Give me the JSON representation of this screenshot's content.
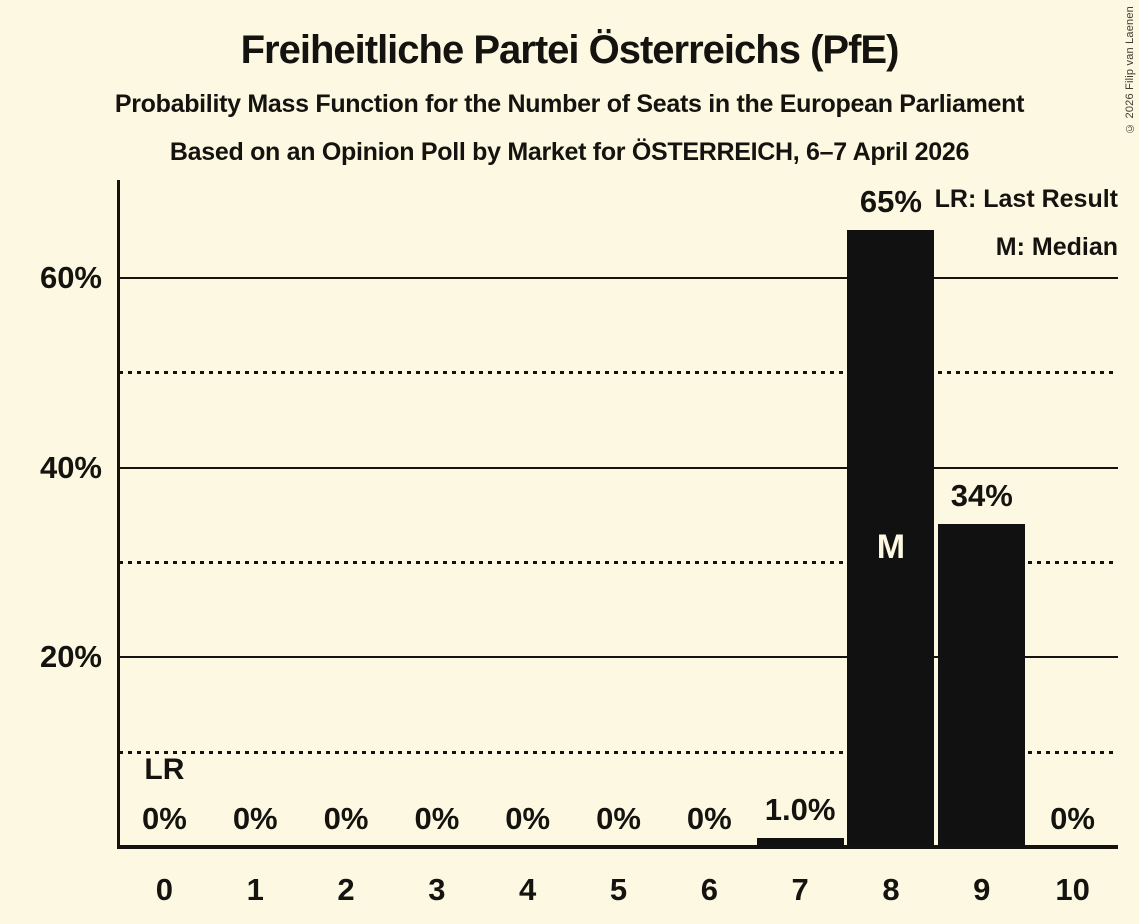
{
  "page": {
    "background": "#FDF8E1",
    "ink": "#14130F",
    "copyright_color": "#3E3B33"
  },
  "header": {
    "title": "Freiheitliche Partei Österreichs (PfE)",
    "subtitle": "Probability Mass Function for the Number of Seats in the European Parliament",
    "source_line": "Based on an Opinion Poll by Market for ÖSTERREICH, 6–7 April 2026",
    "copyright": "© 2026 Filip van Laenen"
  },
  "legend": {
    "items": [
      {
        "label": "LR: Last Result"
      },
      {
        "label": "M: Median"
      }
    ]
  },
  "chart_data": {
    "type": "bar",
    "title": "Freiheitliche Partei Österreichs (PfE)",
    "subtitle": "Probability Mass Function for the Number of Seats in the European Parliament",
    "source": "Based on an Opinion Poll by Market for ÖSTERREICH, 6–7 April 2026",
    "categories": [
      "0",
      "1",
      "2",
      "3",
      "4",
      "5",
      "6",
      "7",
      "8",
      "9",
      "10"
    ],
    "values": [
      0,
      0,
      0,
      0,
      0,
      0,
      0,
      1.0,
      65,
      34,
      0
    ],
    "bar_labels": [
      "0%",
      "0%",
      "0%",
      "0%",
      "0%",
      "0%",
      "0%",
      "1.0%",
      "65%",
      "34%",
      "0%"
    ],
    "xlabel": "",
    "ylabel": "",
    "ylim": [
      0,
      70
    ],
    "y_ticks": [
      {
        "value": 20,
        "label": "20%"
      },
      {
        "value": 40,
        "label": "40%"
      },
      {
        "value": 60,
        "label": "60%"
      }
    ],
    "gridlines": {
      "solid": [
        20,
        40,
        60
      ],
      "dotted": [
        10,
        30,
        50
      ]
    },
    "legend_position": "top-right",
    "bar_color": "#111111",
    "median_text_color": "#FDF8E1",
    "annotations": {
      "last_result": {
        "label": "LR",
        "seat": 0,
        "at_percent": 10
      },
      "median": {
        "label": "M",
        "seat": 8
      }
    }
  }
}
